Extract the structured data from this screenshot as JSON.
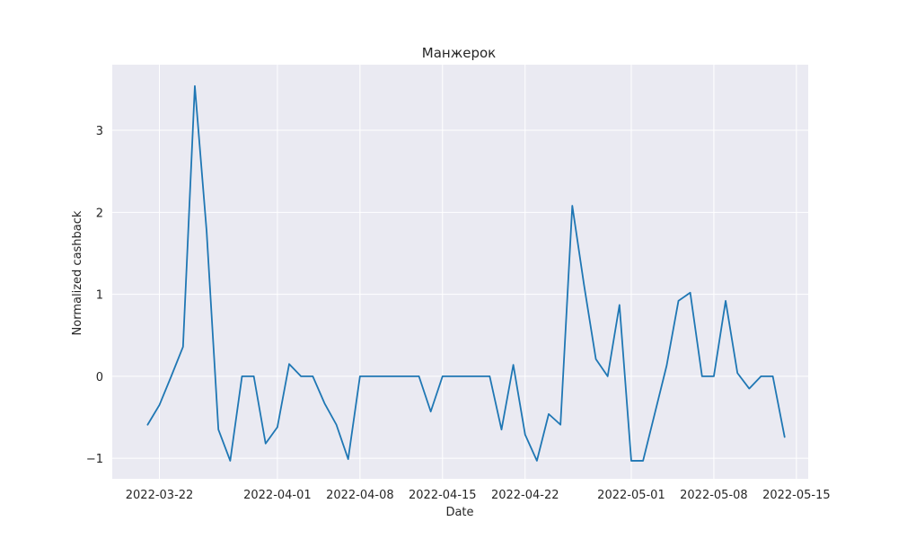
{
  "chart_data": {
    "type": "line",
    "title": "Манжерок",
    "xlabel": "Date",
    "ylabel": "Normalized cashback",
    "x_tick_labels": [
      "2022-03-22",
      "2022-04-01",
      "2022-04-08",
      "2022-04-15",
      "2022-04-22",
      "2022-05-01",
      "2022-05-08",
      "2022-05-15"
    ],
    "y_tick_labels": [
      "−1",
      "0",
      "1",
      "2",
      "3"
    ],
    "y_ticks": [
      -1,
      0,
      1,
      2,
      3
    ],
    "xlim": [
      "2022-03-18",
      "2022-05-16"
    ],
    "ylim": [
      -1.25,
      3.8
    ],
    "grid": true,
    "colors": {
      "background": "#eaeaf2",
      "grid": "#ffffff",
      "line": "#1f77b4"
    },
    "series": [
      {
        "x": [
          "2022-03-21",
          "2022-03-22",
          "2022-03-23",
          "2022-03-24",
          "2022-03-25",
          "2022-03-26",
          "2022-03-27",
          "2022-03-28",
          "2022-03-29",
          "2022-03-30",
          "2022-03-31",
          "2022-04-01",
          "2022-04-02",
          "2022-04-03",
          "2022-04-04",
          "2022-04-05",
          "2022-04-06",
          "2022-04-07",
          "2022-04-08",
          "2022-04-09",
          "2022-04-10",
          "2022-04-11",
          "2022-04-12",
          "2022-04-13",
          "2022-04-14",
          "2022-04-15",
          "2022-04-16",
          "2022-04-17",
          "2022-04-18",
          "2022-04-19",
          "2022-04-20",
          "2022-04-21",
          "2022-04-22",
          "2022-04-23",
          "2022-04-24",
          "2022-04-25",
          "2022-04-26",
          "2022-04-27",
          "2022-04-28",
          "2022-04-29",
          "2022-04-30",
          "2022-05-01",
          "2022-05-02",
          "2022-05-03",
          "2022-05-04",
          "2022-05-05",
          "2022-05-06",
          "2022-05-07",
          "2022-05-08",
          "2022-05-09",
          "2022-05-10",
          "2022-05-11",
          "2022-05-12",
          "2022-05-13",
          "2022-05-14"
        ],
        "values": [
          -0.59,
          -0.35,
          0.0,
          0.36,
          3.54,
          1.77,
          -0.65,
          -1.03,
          0.0,
          0.0,
          -0.82,
          -0.62,
          0.15,
          0.0,
          0.0,
          -0.33,
          -0.59,
          -1.01,
          0.0,
          0.0,
          0.0,
          0.0,
          0.0,
          0.0,
          -0.43,
          0.0,
          0.0,
          0.0,
          0.0,
          0.0,
          -0.65,
          0.14,
          -0.71,
          -1.03,
          -0.46,
          -0.59,
          2.08,
          1.11,
          0.21,
          0.0,
          0.87,
          -1.03,
          -1.03,
          -0.45,
          0.13,
          0.92,
          1.02,
          0.0,
          0.0,
          0.92,
          0.04,
          -0.15,
          0.0,
          0.0,
          -0.74
        ]
      }
    ]
  }
}
